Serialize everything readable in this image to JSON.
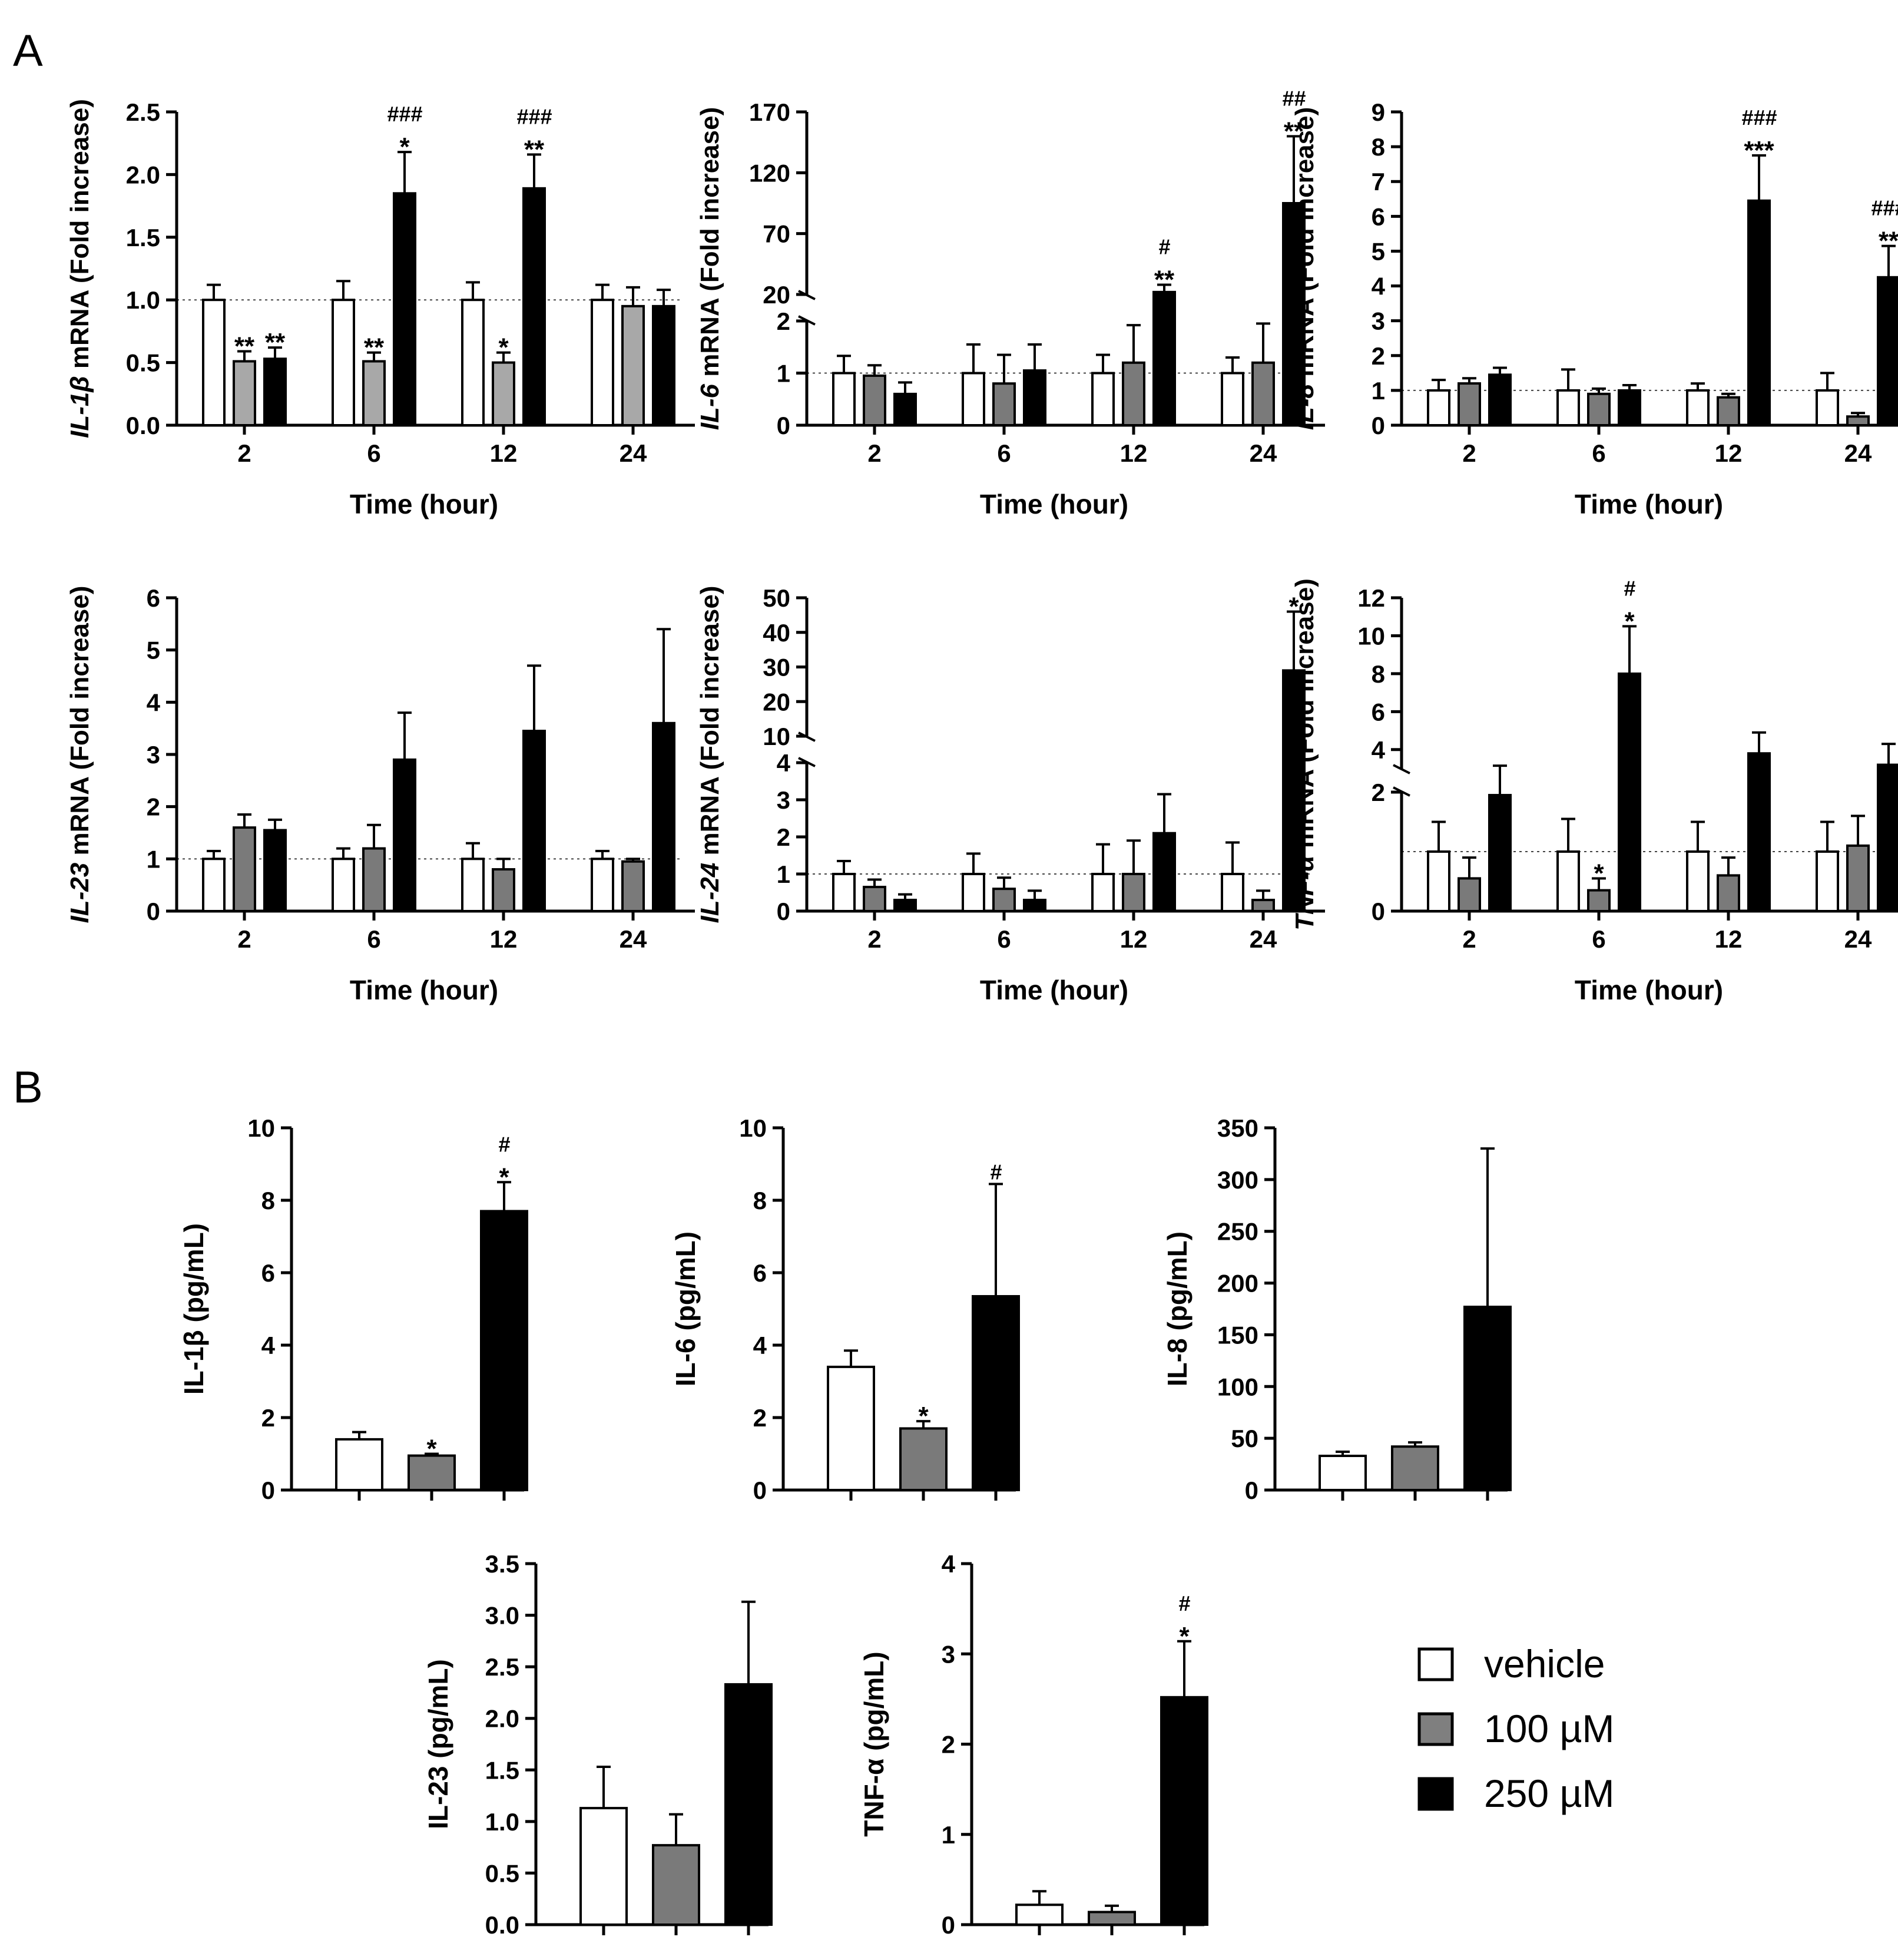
{
  "panel_labels": [
    "A",
    "B"
  ],
  "legend": [
    {
      "label": "vehicle",
      "color": "#ffffff"
    },
    {
      "label": "100 µM",
      "color": "#7f7f7f"
    },
    {
      "label": "250 µM",
      "color": "#000000"
    }
  ],
  "colors": {
    "vehicle": "#ffffff",
    "low": "#8a8a8a",
    "high": "#000000"
  },
  "chart_data": [
    {
      "type": "bar",
      "panel": "A",
      "ylabel_italic": "IL-1β",
      "ylabel_rest": " mRNA (Fold increase)",
      "xlabel": "Time (hour)",
      "categories": [
        "2",
        "6",
        "12",
        "24"
      ],
      "ylim": [
        0,
        2.5
      ],
      "yticks": [
        "0.0",
        "0.5",
        "1.0",
        "1.5",
        "2.0",
        "2.5"
      ],
      "reference_line": 1,
      "series_colors": [
        "#ffffff",
        "#a8a8a8",
        "#000000"
      ],
      "series": [
        {
          "values": [
            1.0,
            1.0,
            1.0,
            1.0
          ],
          "errors": [
            0.12,
            0.15,
            0.14,
            0.12
          ]
        },
        {
          "values": [
            0.51,
            0.51,
            0.5,
            0.95
          ],
          "errors": [
            0.08,
            0.07,
            0.08,
            0.15
          ]
        },
        {
          "values": [
            0.53,
            1.85,
            1.89,
            0.95
          ],
          "errors": [
            0.09,
            0.33,
            0.27,
            0.13
          ]
        }
      ],
      "annotations": [
        {
          "cat": 0,
          "s": 1,
          "stars": "**",
          "hash": ""
        },
        {
          "cat": 0,
          "s": 2,
          "stars": "**",
          "hash": ""
        },
        {
          "cat": 1,
          "s": 1,
          "stars": "**",
          "hash": ""
        },
        {
          "cat": 1,
          "s": 2,
          "stars": "*",
          "hash": "###"
        },
        {
          "cat": 2,
          "s": 1,
          "stars": "*",
          "hash": ""
        },
        {
          "cat": 2,
          "s": 2,
          "stars": "**",
          "hash": "###"
        }
      ]
    },
    {
      "type": "bar",
      "panel": "A",
      "ylabel_italic": "IL-6",
      "ylabel_rest": " mRNA (Fold increase)",
      "xlabel": "Time (hour)",
      "categories": [
        "2",
        "6",
        "12",
        "24"
      ],
      "broken_axis": {
        "lower": [
          0,
          2
        ],
        "upper": [
          20,
          170
        ]
      },
      "yticks_lower": [
        "0",
        "1",
        "2"
      ],
      "yticks_upper": [
        "20",
        "70",
        "120",
        "170"
      ],
      "reference_line": 1,
      "series_colors": [
        "#ffffff",
        "#7a7a7a",
        "#000000"
      ],
      "series": [
        {
          "values": [
            1.0,
            1.0,
            1.0,
            1.0
          ],
          "errors": [
            0.33,
            0.55,
            0.35,
            0.3
          ]
        },
        {
          "values": [
            0.95,
            0.8,
            1.2,
            1.2
          ],
          "errors": [
            0.2,
            0.55,
            0.72,
            0.75
          ]
        },
        {
          "values": [
            0.6,
            1.05,
            22,
            95
          ],
          "errors": [
            0.22,
            0.5,
            6,
            55
          ]
        }
      ],
      "annotations": [
        {
          "cat": 2,
          "s": 2,
          "stars": "**",
          "hash": "#"
        },
        {
          "cat": 3,
          "s": 2,
          "stars": "**",
          "hash": "##"
        }
      ]
    },
    {
      "type": "bar",
      "panel": "A",
      "ylabel_italic": "IL-8",
      "ylabel_rest": " mRNA (Fold increase)",
      "xlabel": "Time (hour)",
      "categories": [
        "2",
        "6",
        "12",
        "24"
      ],
      "ylim": [
        0,
        9
      ],
      "yticks": [
        "0",
        "1",
        "2",
        "3",
        "4",
        "5",
        "6",
        "7",
        "8",
        "9"
      ],
      "reference_line": 1,
      "series_colors": [
        "#ffffff",
        "#7a7a7a",
        "#000000"
      ],
      "series": [
        {
          "values": [
            1.0,
            1.0,
            1.0,
            1.0
          ],
          "errors": [
            0.3,
            0.6,
            0.2,
            0.5
          ]
        },
        {
          "values": [
            1.2,
            0.9,
            0.8,
            0.25
          ],
          "errors": [
            0.15,
            0.15,
            0.1,
            0.1
          ]
        },
        {
          "values": [
            1.45,
            1.0,
            6.45,
            4.25
          ],
          "errors": [
            0.2,
            0.15,
            1.3,
            0.9
          ]
        }
      ],
      "annotations": [
        {
          "cat": 2,
          "s": 2,
          "stars": "***",
          "hash": "###"
        },
        {
          "cat": 3,
          "s": 2,
          "stars": "**",
          "hash": "###"
        }
      ]
    },
    {
      "type": "bar",
      "panel": "A",
      "ylabel_italic": "IL-23",
      "ylabel_rest": " mRNA (Fold increase)",
      "xlabel": "Time (hour)",
      "categories": [
        "2",
        "6",
        "12",
        "24"
      ],
      "ylim": [
        0,
        6
      ],
      "yticks": [
        "0",
        "1",
        "2",
        "3",
        "4",
        "5",
        "6"
      ],
      "reference_line": 1,
      "series_colors": [
        "#ffffff",
        "#7a7a7a",
        "#000000"
      ],
      "series": [
        {
          "values": [
            1.0,
            1.0,
            1.0,
            1.0
          ],
          "errors": [
            0.15,
            0.2,
            0.3,
            0.15
          ]
        },
        {
          "values": [
            1.6,
            1.2,
            0.8,
            0.95
          ],
          "errors": [
            0.25,
            0.45,
            0.2,
            0.05
          ]
        },
        {
          "values": [
            1.55,
            2.9,
            3.45,
            3.6
          ],
          "errors": [
            0.2,
            0.9,
            1.25,
            1.8
          ]
        }
      ],
      "annotations": []
    },
    {
      "type": "bar",
      "panel": "A",
      "ylabel_italic": "IL-24",
      "ylabel_rest": " mRNA (Fold increase)",
      "xlabel": "Time (hour)",
      "categories": [
        "2",
        "6",
        "12",
        "24"
      ],
      "broken_axis": {
        "lower": [
          0,
          4
        ],
        "upper": [
          10,
          50
        ]
      },
      "yticks_lower": [
        "0",
        "1",
        "2",
        "3",
        "4"
      ],
      "yticks_upper": [
        "10",
        "20",
        "30",
        "40",
        "50"
      ],
      "reference_line": 1,
      "series_colors": [
        "#ffffff",
        "#7a7a7a",
        "#000000"
      ],
      "series": [
        {
          "values": [
            1.0,
            1.0,
            1.0,
            1.0
          ],
          "errors": [
            0.35,
            0.55,
            0.8,
            0.85
          ]
        },
        {
          "values": [
            0.65,
            0.6,
            1.0,
            0.3
          ],
          "errors": [
            0.2,
            0.3,
            0.9,
            0.25
          ]
        },
        {
          "values": [
            0.3,
            0.3,
            2.1,
            29
          ],
          "errors": [
            0.15,
            0.25,
            1.05,
            17
          ]
        }
      ],
      "annotations": [
        {
          "cat": 3,
          "s": 2,
          "stars": "*",
          "hash": ""
        }
      ]
    },
    {
      "type": "bar",
      "panel": "A",
      "ylabel_italic": "TNF-α",
      "ylabel_rest": " mRNA (Fold increase)",
      "xlabel": "Time (hour)",
      "categories": [
        "2",
        "6",
        "12",
        "24"
      ],
      "broken_axis": {
        "lower": [
          0,
          2
        ],
        "upper": [
          3,
          12
        ]
      },
      "yticks_lower": [
        "0",
        "2"
      ],
      "yticks_upper": [
        "4",
        "6",
        "8",
        "10",
        "12"
      ],
      "reference_line": 1,
      "series_colors": [
        "#ffffff",
        "#7a7a7a",
        "#000000"
      ],
      "series": [
        {
          "values": [
            1.0,
            1.0,
            1.0,
            1.0
          ],
          "errors": [
            0.5,
            0.55,
            0.5,
            0.5
          ]
        },
        {
          "values": [
            0.55,
            0.35,
            0.6,
            1.1
          ],
          "errors": [
            0.35,
            0.2,
            0.3,
            0.5
          ]
        },
        {
          "values": [
            1.95,
            8.0,
            3.8,
            3.2
          ],
          "errors": [
            1.2,
            2.5,
            1.1,
            1.1
          ]
        }
      ],
      "annotations": [
        {
          "cat": 1,
          "s": 1,
          "stars": "*",
          "hash": ""
        },
        {
          "cat": 1,
          "s": 2,
          "stars": "*",
          "hash": "#"
        }
      ]
    },
    {
      "type": "bar",
      "panel": "B",
      "ylabel": "IL-1β (pg/mL)",
      "ylim": [
        0,
        10
      ],
      "yticks": [
        "0",
        "2",
        "4",
        "6",
        "8",
        "10"
      ],
      "series_colors": [
        "#ffffff",
        "#7a7a7a",
        "#000000"
      ],
      "values": [
        1.4,
        0.95,
        7.7
      ],
      "errors": [
        0.2,
        0.05,
        0.8
      ],
      "annotations": [
        {
          "bar": 1,
          "stars": "*",
          "hash": ""
        },
        {
          "bar": 2,
          "stars": "*",
          "hash": "#"
        }
      ]
    },
    {
      "type": "bar",
      "panel": "B",
      "ylabel": "IL-6 (pg/mL)",
      "ylim": [
        0,
        10
      ],
      "yticks": [
        "0",
        "2",
        "4",
        "6",
        "8",
        "10"
      ],
      "series_colors": [
        "#ffffff",
        "#7a7a7a",
        "#000000"
      ],
      "values": [
        3.4,
        1.7,
        5.35
      ],
      "errors": [
        0.45,
        0.2,
        3.1
      ],
      "annotations": [
        {
          "bar": 1,
          "stars": "*",
          "hash": ""
        },
        {
          "bar": 2,
          "stars": "",
          "hash": "#"
        }
      ]
    },
    {
      "type": "bar",
      "panel": "B",
      "ylabel": "IL-8 (pg/mL)",
      "ylim": [
        0,
        350
      ],
      "yticks": [
        "0",
        "50",
        "100",
        "150",
        "200",
        "250",
        "300",
        "350"
      ],
      "series_colors": [
        "#ffffff",
        "#7a7a7a",
        "#000000"
      ],
      "values": [
        33,
        42,
        177
      ],
      "errors": [
        4,
        4,
        153
      ],
      "annotations": []
    },
    {
      "type": "bar",
      "panel": "B",
      "ylabel": "IL-23 (pg/mL)",
      "ylim": [
        0,
        3.5
      ],
      "yticks": [
        "0.0",
        "0.5",
        "1.0",
        "1.5",
        "2.0",
        "2.5",
        "3.0",
        "3.5"
      ],
      "series_colors": [
        "#ffffff",
        "#7a7a7a",
        "#000000"
      ],
      "values": [
        1.13,
        0.77,
        2.33
      ],
      "errors": [
        0.4,
        0.3,
        0.8
      ],
      "annotations": []
    },
    {
      "type": "bar",
      "panel": "B",
      "ylabel": "TNF-α (pg/mL)",
      "ylim": [
        0,
        4
      ],
      "yticks": [
        "0",
        "1",
        "2",
        "3",
        "4"
      ],
      "series_colors": [
        "#ffffff",
        "#7a7a7a",
        "#000000"
      ],
      "values": [
        0.22,
        0.14,
        2.52
      ],
      "errors": [
        0.15,
        0.07,
        0.62
      ],
      "annotations": [
        {
          "bar": 2,
          "stars": "*",
          "hash": "#"
        }
      ]
    }
  ]
}
